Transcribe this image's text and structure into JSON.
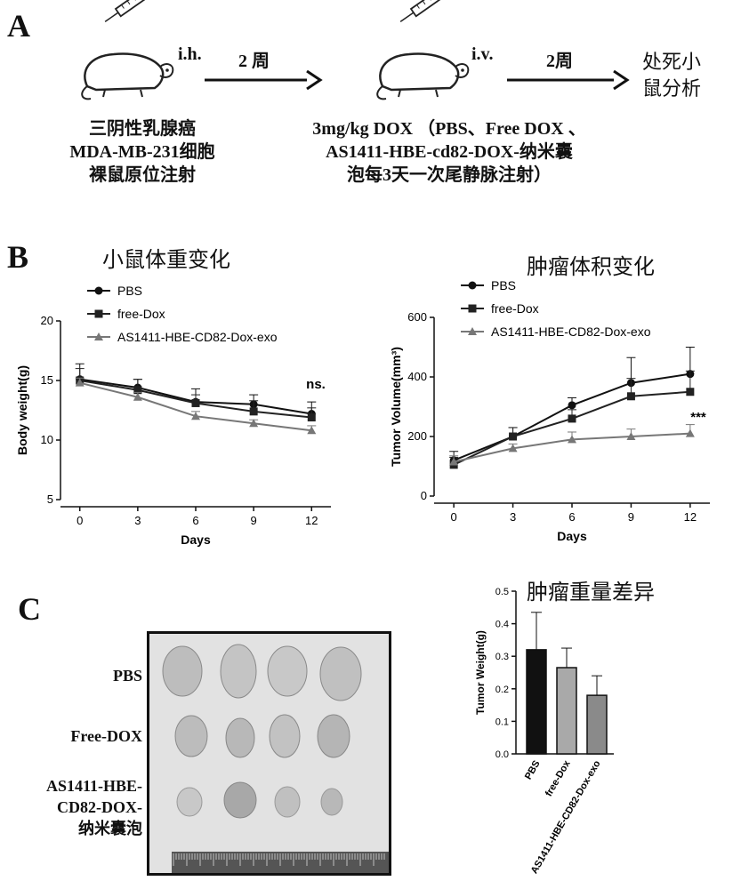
{
  "panelA": {
    "letter": "A",
    "route1": "i.h.",
    "route2": "i.v.",
    "arrow1": "2 周",
    "arrow2": "2周",
    "end_line1": "处死小",
    "end_line2": "鼠分析",
    "step1": [
      "三阴性乳腺癌",
      "MDA-MB-231细胞",
      "裸鼠原位注射"
    ],
    "step2": [
      "3mg/kg DOX （PBS、Free DOX 、",
      "AS1411-HBE-cd82-DOX-纳米囊",
      "泡每3天一次尾静脉注射）"
    ]
  },
  "panelB": {
    "letter": "B"
  },
  "panelC": {
    "letter": "C",
    "photo_labels": [
      "PBS",
      "Free-DOX",
      "AS1411-HBE-",
      "CD82-DOX-",
      "纳米囊泡"
    ]
  },
  "colors": {
    "pbs": "#111111",
    "free": "#222222",
    "exo": "#777777",
    "bar_pbs": "#111111",
    "bar_free": "#a9a9a9",
    "bar_exo": "#8a8a8a"
  },
  "chart_data": [
    {
      "type": "line",
      "title": "小鼠体重变化",
      "xlabel": "Days",
      "ylabel": "Body weight(g)",
      "x": [
        0,
        3,
        6,
        9,
        12
      ],
      "xlim": [
        -1,
        13
      ],
      "ylim": [
        5,
        20
      ],
      "yticks": [
        5,
        10,
        15,
        20
      ],
      "series": [
        {
          "name": "PBS",
          "marker": "circle",
          "values": [
            15.1,
            14.4,
            13.2,
            13.0,
            12.2
          ],
          "err": [
            1.3,
            0.7,
            1.1,
            0.8,
            1.0
          ]
        },
        {
          "name": "free-Dox",
          "marker": "square",
          "values": [
            15.0,
            14.2,
            13.1,
            12.4,
            11.9
          ],
          "err": [
            1.0,
            0.9,
            0.7,
            0.9,
            0.8
          ]
        },
        {
          "name": "AS1411-HBE-CD82-Dox-exo",
          "marker": "triangle",
          "values": [
            14.8,
            13.6,
            12.0,
            11.4,
            10.8
          ],
          "err": [
            0.4,
            0.4,
            0.4,
            0.3,
            0.4
          ]
        }
      ],
      "annotation": "ns."
    },
    {
      "type": "line",
      "title": "肿瘤体积变化",
      "xlabel": "Days",
      "ylabel": "Tumor Volume(mm³)",
      "x": [
        0,
        3,
        6,
        9,
        12
      ],
      "xlim": [
        -1,
        13
      ],
      "ylim": [
        0,
        600
      ],
      "yticks": [
        0,
        200,
        400,
        600
      ],
      "series": [
        {
          "name": "PBS",
          "marker": "circle",
          "values": [
            120,
            200,
            305,
            380,
            410
          ],
          "err": [
            30,
            30,
            25,
            85,
            90
          ]
        },
        {
          "name": "free-Dox",
          "marker": "square",
          "values": [
            105,
            200,
            260,
            335,
            350
          ],
          "err": [
            25,
            30,
            30,
            60,
            70
          ]
        },
        {
          "name": "AS1411-HBE-CD82-Dox-exo",
          "marker": "triangle",
          "values": [
            115,
            160,
            190,
            200,
            210
          ],
          "err": [
            20,
            15,
            25,
            25,
            30
          ]
        }
      ],
      "annotation": "***"
    },
    {
      "type": "bar",
      "title": "肿瘤重量差异",
      "ylabel": "Tumor Weight(g)",
      "categories": [
        "PBS",
        "free-Dox",
        "AS1411-HBE-CD82-Dox-exo"
      ],
      "values": [
        0.32,
        0.265,
        0.18
      ],
      "err": [
        0.115,
        0.06,
        0.06
      ],
      "ylim": [
        0,
        0.5
      ],
      "yticks": [
        0.0,
        0.1,
        0.2,
        0.3,
        0.4,
        0.5
      ]
    }
  ]
}
